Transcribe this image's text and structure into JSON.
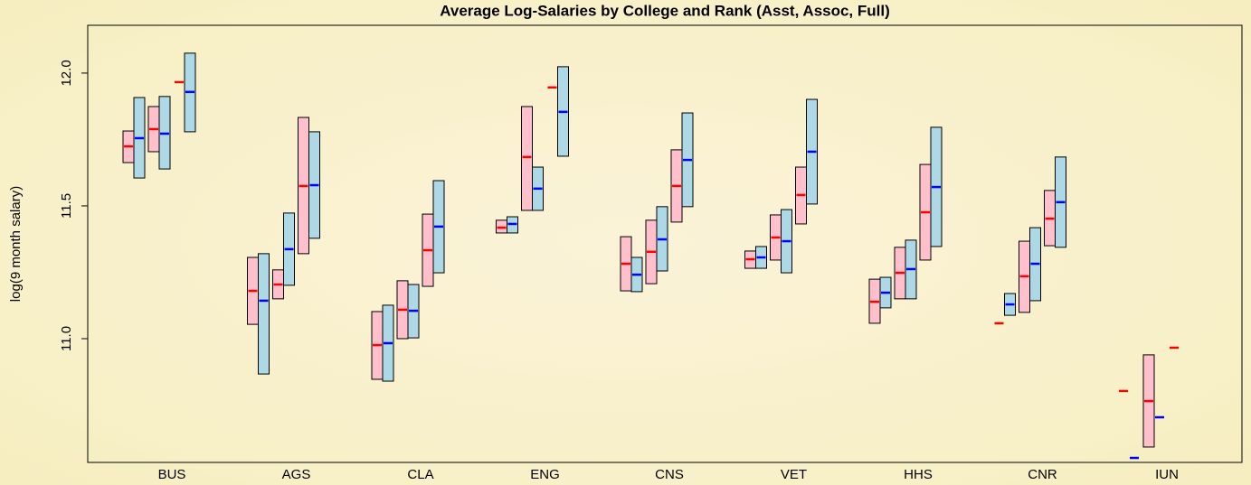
{
  "chart_data": {
    "type": "range-box",
    "title": "Average Log-Salaries by College and Rank (Asst, Assoc, Full)",
    "y_label": "log(9 month salary)",
    "categories": [
      "BUS",
      "AGS",
      "CLA",
      "ENG",
      "CNS",
      "VET",
      "HHS",
      "CNR",
      "IUN"
    ],
    "ylim": [
      10.534,
      12.18
    ],
    "yticks": [
      {
        "value": 11,
        "label": "11.0"
      },
      11.5,
      {
        "value": 12,
        "label": "12.0"
      }
    ],
    "series": [
      {
        "fill": "#ffc0cb",
        "line_color": "#ff0000",
        "low": [
          11.663,
          11.054,
          10.847,
          11.398,
          11.18,
          11.265,
          11.058,
          null,
          null
        ],
        "high": [
          11.782,
          11.306,
          11.102,
          11.446,
          11.384,
          11.33,
          11.224,
          null,
          null
        ],
        "mean": [
          11.724,
          11.18,
          10.976,
          11.418,
          11.282,
          11.299,
          11.139,
          11.058,
          10.803
        ]
      },
      {
        "fill": "#add8e6",
        "line_color": "#0000ff",
        "low": [
          11.605,
          10.867,
          10.84,
          11.398,
          11.177,
          11.265,
          11.116,
          11.088,
          null
        ],
        "high": [
          11.908,
          11.32,
          11.126,
          11.459,
          11.306,
          11.347,
          11.231,
          11.17,
          null
        ],
        "mean": [
          11.755,
          11.143,
          10.983,
          11.432,
          11.241,
          11.306,
          11.173,
          11.129,
          10.551
        ]
      },
      {
        "fill": "#ffc0cb",
        "line_color": "#ff0000",
        "low": [
          11.704,
          11.15,
          11.0,
          11.483,
          11.207,
          11.296,
          11.15,
          11.099,
          10.592
        ],
        "high": [
          11.874,
          11.259,
          11.218,
          11.874,
          11.446,
          11.466,
          11.344,
          11.367,
          10.939
        ],
        "mean": [
          11.789,
          11.204,
          11.109,
          11.684,
          11.327,
          11.381,
          11.248,
          11.235,
          10.765
        ]
      },
      {
        "fill": "#add8e6",
        "line_color": "#0000ff",
        "low": [
          11.639,
          11.201,
          11.003,
          11.483,
          11.255,
          11.248,
          11.15,
          11.143,
          null
        ],
        "high": [
          11.912,
          11.473,
          11.204,
          11.646,
          11.497,
          11.486,
          11.371,
          11.418,
          null
        ],
        "mean": [
          11.772,
          11.337,
          11.105,
          11.565,
          11.374,
          11.367,
          11.262,
          11.282,
          10.704
        ]
      },
      {
        "fill": "#ffc0cb",
        "line_color": "#ff0000",
        "low": [
          null,
          11.32,
          11.197,
          null,
          11.439,
          11.432,
          11.296,
          11.35,
          null
        ],
        "high": [
          null,
          11.833,
          11.469,
          null,
          11.711,
          11.646,
          11.656,
          11.558,
          null
        ],
        "mean": [
          11.966,
          11.575,
          11.333,
          11.946,
          11.575,
          11.541,
          11.476,
          11.452,
          10.966
        ]
      },
      {
        "fill": "#add8e6",
        "line_color": "#0000ff",
        "low": [
          11.779,
          11.378,
          11.248,
          11.687,
          11.497,
          11.507,
          11.347,
          11.344,
          null
        ],
        "high": [
          12.075,
          11.779,
          11.595,
          12.024,
          11.85,
          11.901,
          11.796,
          11.684,
          null
        ],
        "mean": [
          11.929,
          11.578,
          11.422,
          11.854,
          11.673,
          11.704,
          11.571,
          11.514,
          null
        ]
      }
    ]
  }
}
